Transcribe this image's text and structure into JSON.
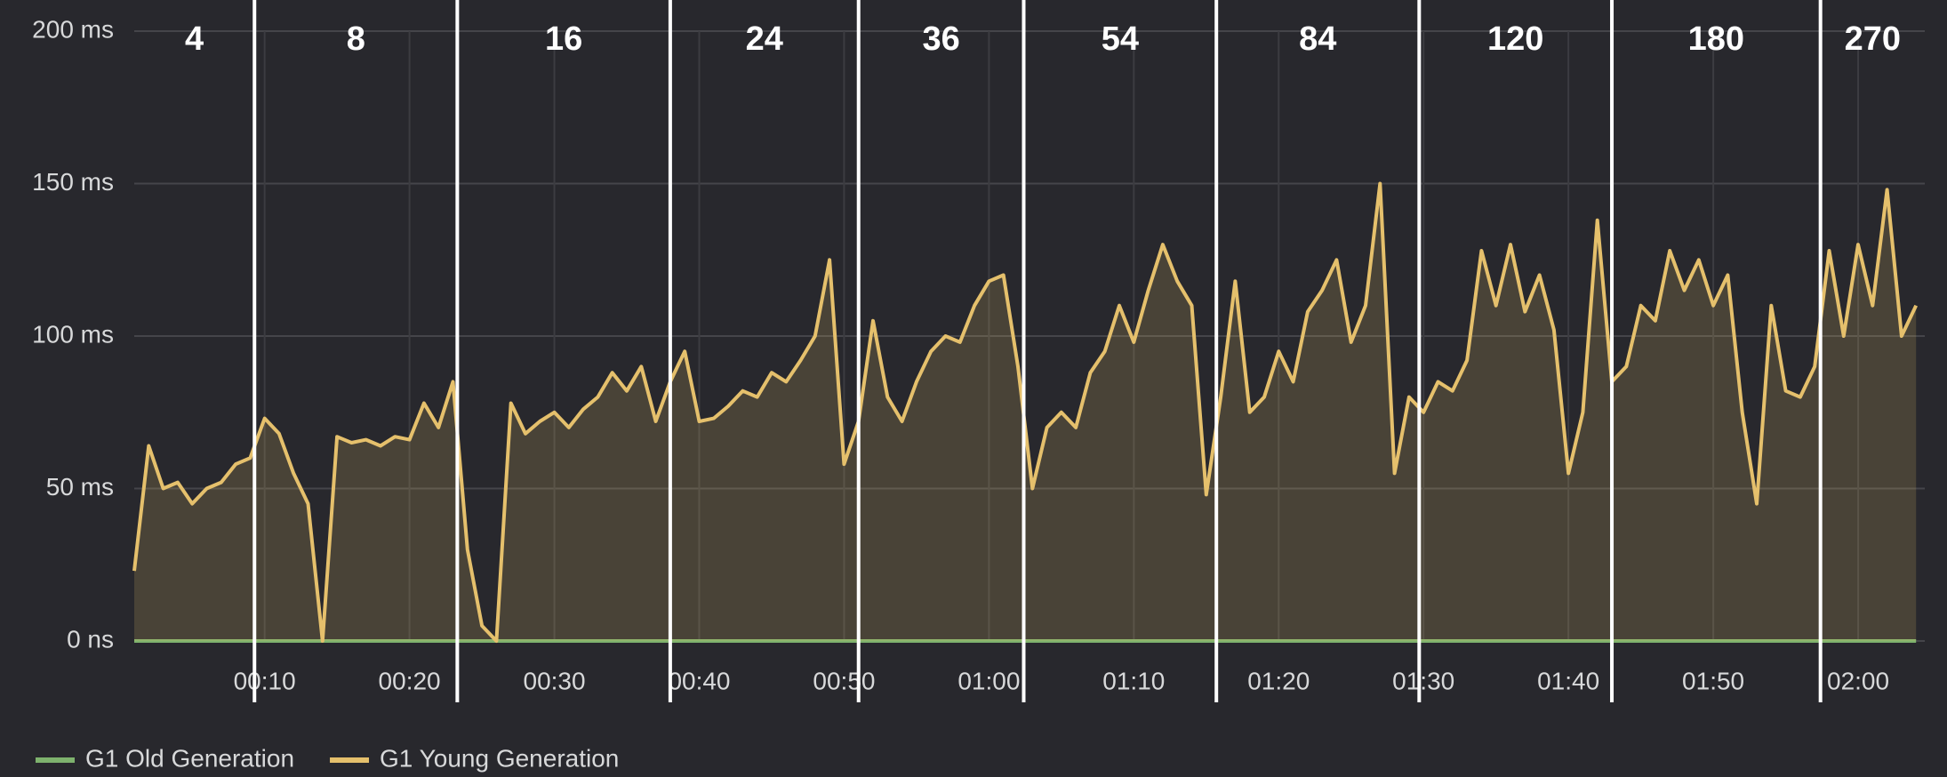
{
  "chart_data": {
    "type": "line",
    "x": [
      1,
      2,
      3,
      4,
      5,
      6,
      7,
      8,
      9,
      10,
      11,
      12,
      13,
      14,
      15,
      16,
      17,
      18,
      19,
      20,
      21,
      22,
      23,
      24,
      25,
      26,
      27,
      28,
      29,
      30,
      31,
      32,
      33,
      34,
      35,
      36,
      37,
      38,
      39,
      40,
      41,
      42,
      43,
      44,
      45,
      46,
      47,
      48,
      49,
      50,
      51,
      52,
      53,
      54,
      55,
      56,
      57,
      58,
      59,
      60,
      61,
      62,
      63,
      64,
      65,
      66,
      67,
      68,
      69,
      70,
      71,
      72,
      73,
      74,
      75,
      76,
      77,
      78,
      79,
      80,
      81,
      82,
      83,
      84,
      85,
      86,
      87,
      88,
      89,
      90,
      91,
      92,
      93,
      94,
      95,
      96,
      97,
      98,
      99,
      100,
      101,
      102,
      103,
      104,
      105,
      106,
      107,
      108,
      109,
      110,
      111,
      112,
      113,
      114,
      115,
      116,
      117,
      118,
      119,
      120,
      121,
      122,
      123,
      124
    ],
    "series": [
      {
        "name": "G1 Old Generation",
        "color": "#7eb26d",
        "values": [
          0,
          0,
          0,
          0,
          0,
          0,
          0,
          0,
          0,
          0,
          0,
          0,
          0,
          0,
          0,
          0,
          0,
          0,
          0,
          0,
          0,
          0,
          0,
          0,
          0,
          0,
          0,
          0,
          0,
          0,
          0,
          0,
          0,
          0,
          0,
          0,
          0,
          0,
          0,
          0,
          0,
          0,
          0,
          0,
          0,
          0,
          0,
          0,
          0,
          0,
          0,
          0,
          0,
          0,
          0,
          0,
          0,
          0,
          0,
          0,
          0,
          0,
          0,
          0,
          0,
          0,
          0,
          0,
          0,
          0,
          0,
          0,
          0,
          0,
          0,
          0,
          0,
          0,
          0,
          0,
          0,
          0,
          0,
          0,
          0,
          0,
          0,
          0,
          0,
          0,
          0,
          0,
          0,
          0,
          0,
          0,
          0,
          0,
          0,
          0,
          0,
          0,
          0,
          0,
          0,
          0,
          0,
          0,
          0,
          0,
          0,
          0,
          0,
          0,
          0,
          0,
          0,
          0,
          0,
          0,
          0,
          0,
          0,
          0
        ]
      },
      {
        "name": "G1 Young Generation",
        "color": "#e5c06c",
        "values": [
          23,
          64,
          50,
          52,
          45,
          50,
          52,
          58,
          60,
          73,
          68,
          55,
          45,
          0,
          67,
          65,
          66,
          64,
          67,
          66,
          78,
          70,
          85,
          30,
          5,
          0,
          78,
          68,
          72,
          75,
          70,
          76,
          80,
          88,
          82,
          90,
          72,
          85,
          95,
          72,
          73,
          77,
          82,
          80,
          88,
          85,
          92,
          100,
          125,
          58,
          72,
          105,
          80,
          72,
          85,
          95,
          100,
          98,
          110,
          118,
          120,
          90,
          50,
          70,
          75,
          70,
          88,
          95,
          110,
          98,
          115,
          130,
          118,
          110,
          48,
          80,
          118,
          75,
          80,
          95,
          85,
          108,
          115,
          125,
          98,
          110,
          150,
          55,
          80,
          75,
          85,
          82,
          92,
          128,
          110,
          130,
          108,
          120,
          102,
          55,
          75,
          138,
          85,
          90,
          110,
          105,
          128,
          115,
          125,
          110,
          120,
          75,
          45,
          110,
          82,
          80,
          90,
          128,
          100,
          130,
          110,
          148,
          100,
          110
        ]
      }
    ],
    "xlim": [
      1,
      124.6
    ],
    "xticks": [
      {
        "value": 10,
        "label": "00:10"
      },
      {
        "value": 20,
        "label": "00:20"
      },
      {
        "value": 30,
        "label": "00:30"
      },
      {
        "value": 40,
        "label": "00:40"
      },
      {
        "value": 50,
        "label": "00:50"
      },
      {
        "value": 60,
        "label": "01:00"
      },
      {
        "value": 70,
        "label": "01:10"
      },
      {
        "value": 80,
        "label": "01:20"
      },
      {
        "value": 90,
        "label": "01:30"
      },
      {
        "value": 100,
        "label": "01:40"
      },
      {
        "value": 110,
        "label": "01:50"
      },
      {
        "value": 120,
        "label": "02:00"
      }
    ],
    "ylim": [
      0,
      200
    ],
    "yticks": [
      {
        "value": 0,
        "label": "0 ns"
      },
      {
        "value": 50,
        "label": "50 ms"
      },
      {
        "value": 100,
        "label": "100 ms"
      },
      {
        "value": 150,
        "label": "150 ms"
      },
      {
        "value": 200,
        "label": "200 ms"
      }
    ],
    "grid": true,
    "annotations": {
      "lines": [
        9.3,
        23.3,
        38.0,
        51.0,
        62.4,
        75.7,
        89.7,
        103.0,
        117.4
      ],
      "labels": [
        "4",
        "8",
        "16",
        "24",
        "36",
        "54",
        "84",
        "120",
        "180",
        "270"
      ]
    }
  }
}
